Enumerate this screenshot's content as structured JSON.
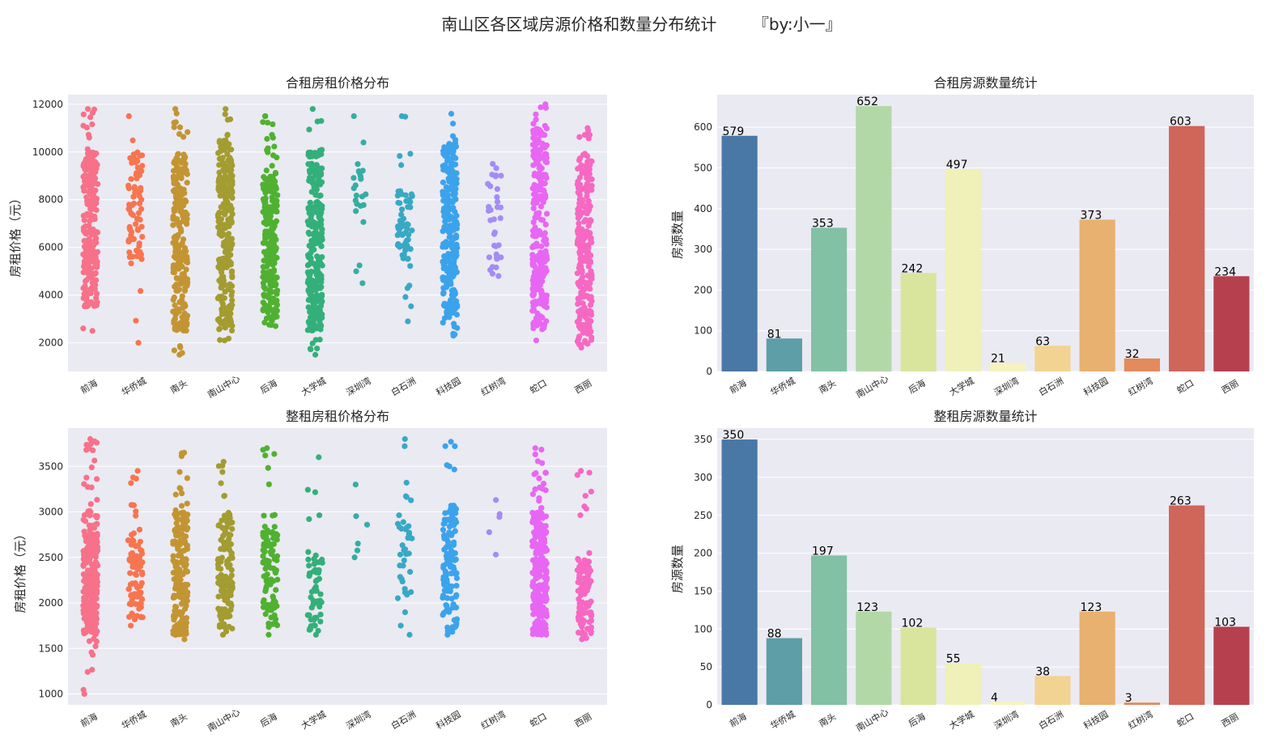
{
  "title": "南山区各区域房源价格和数量分布统计       『by:小一』",
  "districts": [
    "前海",
    "华侨城",
    "南头",
    "南山中心",
    "后海",
    "大学城",
    "深圳湾",
    "白石洲",
    "科技园",
    "红树湾",
    "蛇口",
    "西丽"
  ],
  "chart_data": [
    {
      "id": "shared-price",
      "type": "scatter",
      "title": "合租房租价格分布",
      "xlabel": "",
      "ylabel": "房租价格（元）",
      "ylim": [
        800,
        12400
      ],
      "yticks": [
        2000,
        4000,
        6000,
        8000,
        10000,
        12000
      ],
      "categories": [
        "前海",
        "华侨城",
        "南头",
        "南山中心",
        "后海",
        "大学城",
        "深圳湾",
        "白石洲",
        "科技园",
        "红树湾",
        "蛇口",
        "西丽"
      ],
      "colors": [
        "#f77189",
        "#f7754f",
        "#c39532",
        "#a39c31",
        "#50b131",
        "#33b07a",
        "#36ada4",
        "#38a9c5",
        "#3ba3ec",
        "#a48cf4",
        "#e866f4",
        "#f668c2"
      ],
      "counts": [
        579,
        81,
        353,
        652,
        242,
        497,
        21,
        63,
        373,
        32,
        603,
        234
      ],
      "ranges": [
        [
          2500,
          11800
        ],
        [
          2000,
          11500
        ],
        [
          1500,
          11800
        ],
        [
          2100,
          11800
        ],
        [
          2700,
          11500
        ],
        [
          1500,
          11800
        ],
        [
          4500,
          11500
        ],
        [
          2900,
          11500
        ],
        [
          2300,
          11600
        ],
        [
          4800,
          9500
        ],
        [
          2100,
          12000
        ],
        [
          1800,
          11000
        ]
      ],
      "dense": [
        [
          3500,
          10000
        ],
        [
          5500,
          10000
        ],
        [
          2500,
          10000
        ],
        [
          2500,
          10500
        ],
        [
          3000,
          9000
        ],
        [
          2500,
          10000
        ],
        [
          7500,
          9500
        ],
        [
          5500,
          8500
        ],
        [
          3000,
          10500
        ],
        [
          5000,
          9200
        ],
        [
          2700,
          11000
        ],
        [
          2000,
          10000
        ]
      ]
    },
    {
      "id": "shared-count",
      "type": "bar",
      "title": "合租房源数量统计",
      "xlabel": "",
      "ylabel": "房源数量",
      "ylim": [
        0,
        680
      ],
      "yticks": [
        0,
        100,
        200,
        300,
        400,
        500,
        600
      ],
      "categories": [
        "前海",
        "华侨城",
        "南头",
        "南山中心",
        "后海",
        "大学城",
        "深圳湾",
        "白石洲",
        "科技园",
        "红树湾",
        "蛇口",
        "西丽"
      ],
      "values": [
        579,
        81,
        353,
        652,
        242,
        497,
        21,
        63,
        373,
        32,
        603,
        234
      ],
      "colors": [
        "#4a78a6",
        "#5d9ea7",
        "#82c1a4",
        "#b3d8a7",
        "#d9e59d",
        "#eff1b8",
        "#f7f2c0",
        "#f2d391",
        "#e8b16f",
        "#e38b5c",
        "#d06559",
        "#b6404e"
      ]
    },
    {
      "id": "whole-price",
      "type": "scatter",
      "title": "整租房租价格分布",
      "xlabel": "",
      "ylabel": "房租价格（元）",
      "ylim": [
        880,
        3920
      ],
      "yticks": [
        1000,
        1500,
        2000,
        2500,
        3000,
        3500
      ],
      "categories": [
        "前海",
        "华侨城",
        "南头",
        "南山中心",
        "后海",
        "大学城",
        "深圳湾",
        "白石洲",
        "科技园",
        "红树湾",
        "蛇口",
        "西丽"
      ],
      "colors": [
        "#f77189",
        "#f7754f",
        "#c39532",
        "#a39c31",
        "#50b131",
        "#33b07a",
        "#36ada4",
        "#38a9c5",
        "#3ba3ec",
        "#a48cf4",
        "#e866f4",
        "#f668c2"
      ],
      "counts": [
        350,
        88,
        197,
        123,
        102,
        55,
        4,
        38,
        123,
        3,
        263,
        103
      ],
      "ranges": [
        [
          1000,
          3800
        ],
        [
          1750,
          3450
        ],
        [
          1600,
          3650
        ],
        [
          1650,
          3550
        ],
        [
          1650,
          3700
        ],
        [
          1650,
          3600
        ],
        [
          2500,
          3300
        ],
        [
          1650,
          3800
        ],
        [
          1650,
          3770
        ],
        [
          2530,
          3130
        ],
        [
          1650,
          3700
        ],
        [
          1600,
          3450
        ]
      ],
      "dense": [
        [
          1650,
          3000
        ],
        [
          1800,
          2700
        ],
        [
          1650,
          3000
        ],
        [
          1700,
          3000
        ],
        [
          1750,
          2800
        ],
        [
          1700,
          2600
        ],
        [
          2500,
          3300
        ],
        [
          1900,
          2900
        ],
        [
          1700,
          3100
        ],
        [
          2530,
          3130
        ],
        [
          1650,
          3000
        ],
        [
          1650,
          2500
        ]
      ]
    },
    {
      "id": "whole-count",
      "type": "bar",
      "title": "整租房源数量统计",
      "xlabel": "",
      "ylabel": "房源数量",
      "ylim": [
        0,
        365
      ],
      "yticks": [
        0,
        50,
        100,
        150,
        200,
        250,
        300,
        350
      ],
      "categories": [
        "前海",
        "华侨城",
        "南头",
        "南山中心",
        "后海",
        "大学城",
        "深圳湾",
        "白石洲",
        "科技园",
        "红树湾",
        "蛇口",
        "西丽"
      ],
      "values": [
        350,
        88,
        197,
        123,
        102,
        55,
        4,
        38,
        123,
        3,
        263,
        103
      ],
      "colors": [
        "#4a78a6",
        "#5d9ea7",
        "#82c1a4",
        "#b3d8a7",
        "#d9e59d",
        "#eff1b8",
        "#f7f2c0",
        "#f2d391",
        "#e8b16f",
        "#e38b5c",
        "#d06559",
        "#b6404e"
      ]
    }
  ]
}
